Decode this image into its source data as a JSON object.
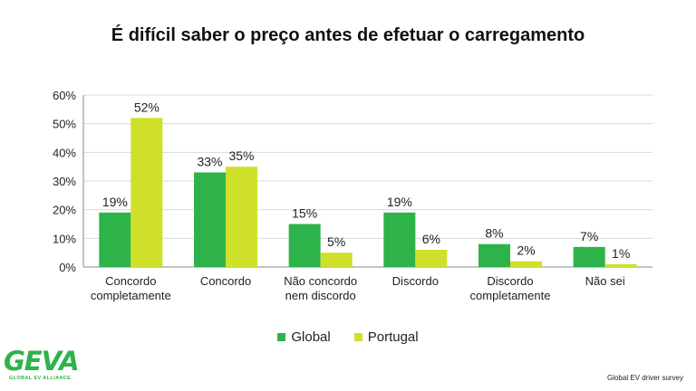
{
  "title": "É difícil saber o preço antes de efetuar o carregamento",
  "legend": [
    {
      "label": "Global",
      "color": "#2db34a"
    },
    {
      "label": "Portugal",
      "color": "#cfe02a"
    }
  ],
  "logo": {
    "name": "GEVA",
    "subtitle": "GLOBAL EV ALLIANCE"
  },
  "source": "Global EV driver survey",
  "chart_data": {
    "type": "bar",
    "categories": [
      [
        "Concordo",
        "completamente"
      ],
      [
        "Concordo"
      ],
      [
        "Não concordo",
        "nem discordo"
      ],
      [
        "Discordo"
      ],
      [
        "Discordo",
        "completamente"
      ],
      [
        "Não sei"
      ]
    ],
    "series": [
      {
        "name": "Global",
        "color": "#2db34a",
        "values": [
          19,
          33,
          15,
          19,
          8,
          7
        ],
        "labels": [
          "19%",
          "33%",
          "15%",
          "19%",
          "8%",
          "7%"
        ]
      },
      {
        "name": "Portugal",
        "color": "#cfe02a",
        "values": [
          52,
          35,
          5,
          6,
          2,
          1
        ],
        "labels": [
          "52%",
          "35%",
          "5%",
          "6%",
          "2%",
          "1%"
        ]
      }
    ],
    "ylim": [
      0,
      60
    ],
    "yticks": [
      0,
      10,
      20,
      30,
      40,
      50,
      60
    ],
    "ytick_labels": [
      "0%",
      "10%",
      "20%",
      "30%",
      "40%",
      "50%",
      "60%"
    ],
    "grid": true,
    "legend_position": "bottom"
  }
}
